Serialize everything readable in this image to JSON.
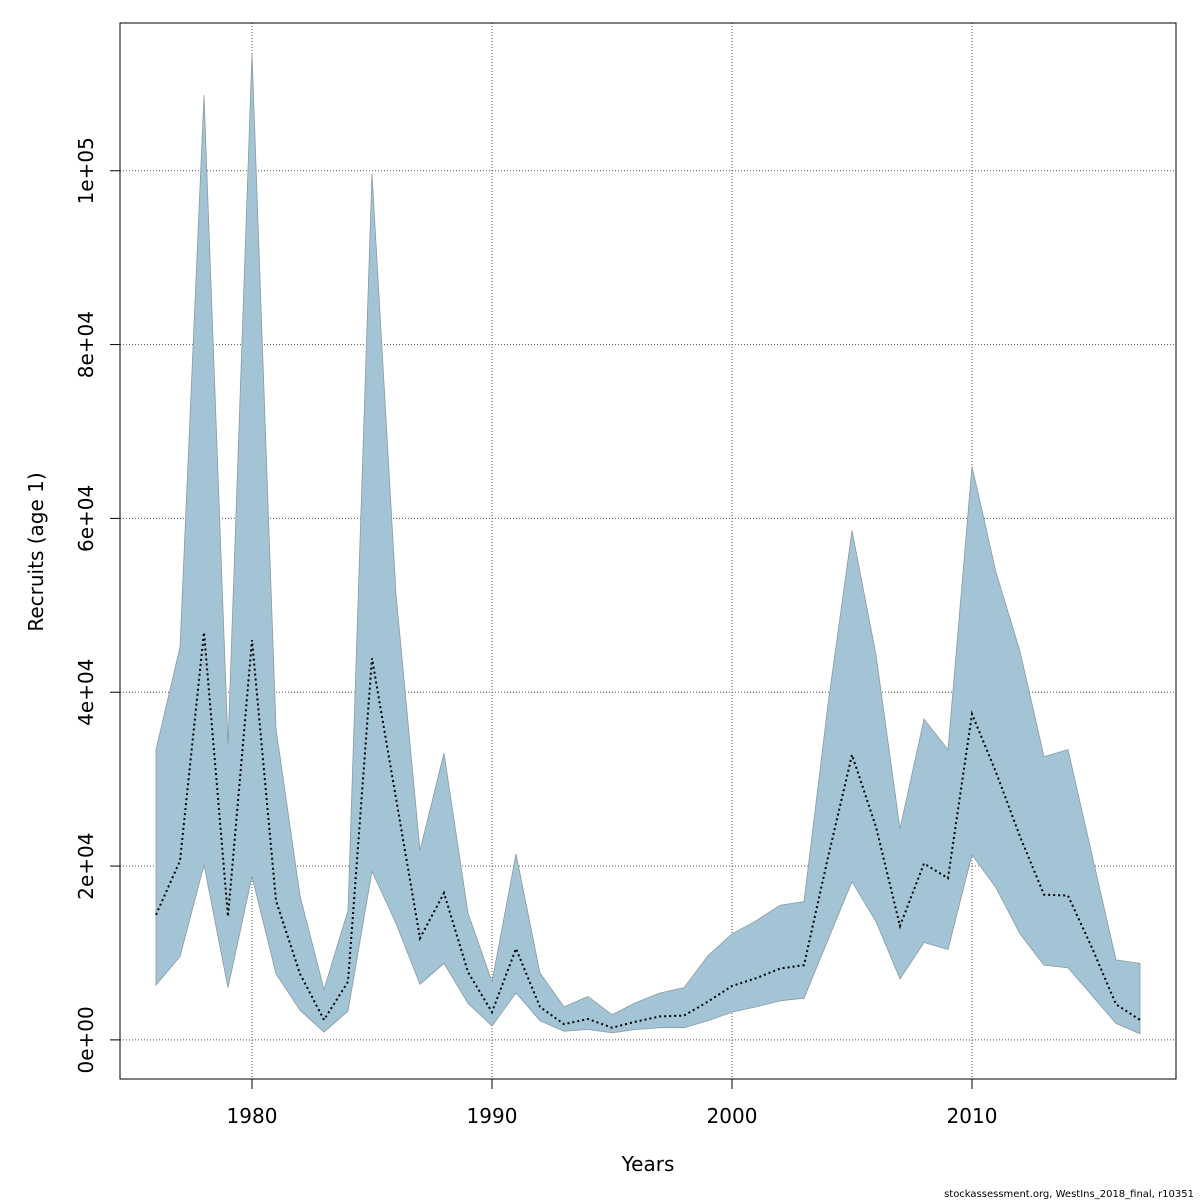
{
  "chart_data": {
    "type": "area",
    "xlabel": "Years",
    "ylabel": "Recruits (age 1)",
    "footer": "stockassessment.org, WestIns_2018_final, r10351",
    "xlim": [
      1974.5,
      2018.5
    ],
    "ylim": [
      -4500,
      117000
    ],
    "x_ticks": [
      1980,
      1990,
      2000,
      2010
    ],
    "x_tick_labels": [
      "1980",
      "1990",
      "2000",
      "2010"
    ],
    "y_ticks": [
      0,
      20000,
      40000,
      60000,
      80000,
      100000
    ],
    "y_tick_labels": [
      "0e+00",
      "2e+04",
      "4e+04",
      "6e+04",
      "8e+04",
      "1e+05"
    ],
    "grid": true,
    "colors": {
      "band": "#a3c4d5",
      "band_edge": "#8a9aa3",
      "line": "#000000",
      "grid": "#555555"
    },
    "x": [
      1976,
      1977,
      1978,
      1979,
      1980,
      1981,
      1982,
      1983,
      1984,
      1985,
      1986,
      1987,
      1988,
      1989,
      1990,
      1991,
      1992,
      1993,
      1994,
      1995,
      1996,
      1997,
      1998,
      1999,
      2000,
      2001,
      2002,
      2003,
      2004,
      2005,
      2006,
      2007,
      2008,
      2009,
      2010,
      2011,
      2012,
      2013,
      2014,
      2015,
      2016,
      2017
    ],
    "series": [
      {
        "name": "Estimate",
        "values": [
          14400,
          20600,
          46900,
          14200,
          46000,
          16000,
          7600,
          2300,
          6700,
          43900,
          27800,
          11700,
          16900,
          7800,
          3200,
          10500,
          3800,
          1800,
          2400,
          1400,
          2100,
          2700,
          2800,
          4400,
          6200,
          7100,
          8200,
          8600,
          21000,
          32800,
          24500,
          13100,
          20300,
          18600,
          37500,
          30800,
          23400,
          16700,
          16600,
          10600,
          4100,
          2300
        ]
      },
      {
        "name": "Lower",
        "values": [
          6300,
          9600,
          20100,
          6000,
          18800,
          7600,
          3400,
          900,
          3300,
          19400,
          13400,
          6400,
          8800,
          4200,
          1600,
          5400,
          2200,
          1000,
          1200,
          800,
          1200,
          1400,
          1400,
          2200,
          3200,
          3800,
          4500,
          4800,
          11500,
          18200,
          13600,
          7000,
          11200,
          10400,
          21300,
          17500,
          12200,
          8600,
          8300,
          5100,
          1900,
          700
        ]
      },
      {
        "name": "Upper",
        "values": [
          33400,
          45200,
          108700,
          34000,
          113500,
          35800,
          16600,
          5800,
          14900,
          99700,
          51300,
          21800,
          33000,
          14600,
          6700,
          21400,
          7700,
          3800,
          5000,
          2900,
          4300,
          5400,
          6000,
          9700,
          12200,
          13700,
          15500,
          15900,
          38600,
          58600,
          44300,
          24300,
          36900,
          33400,
          66000,
          53800,
          44700,
          32600,
          33400,
          21300,
          9200,
          8800
        ]
      }
    ]
  }
}
